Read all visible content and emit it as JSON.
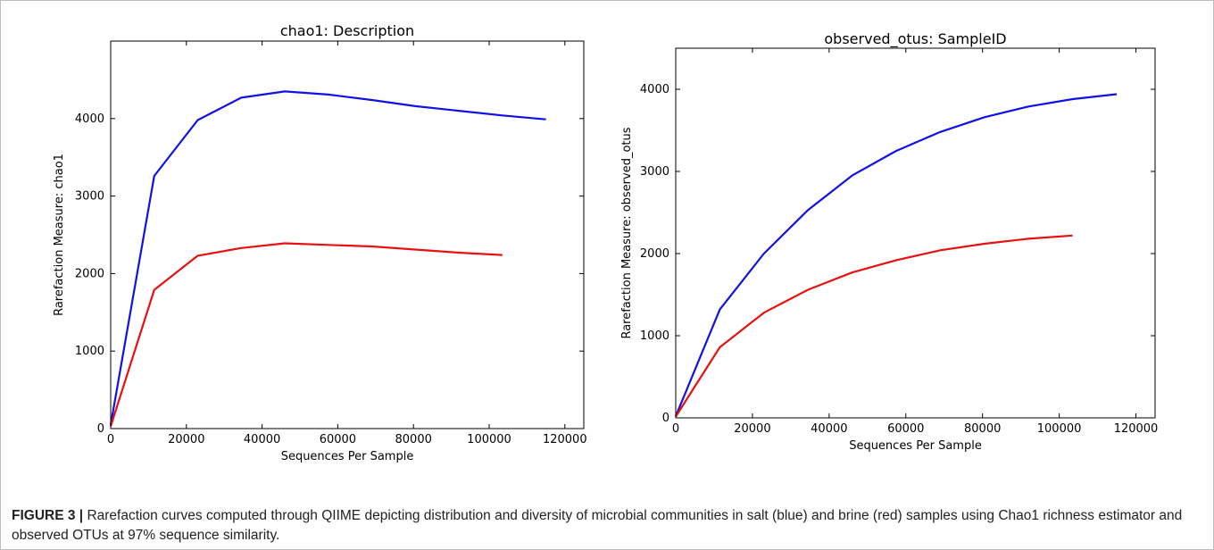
{
  "caption": {
    "label": "FIGURE 3 |",
    "text": " Rarefaction curves computed through QIIME depicting distribution and diversity of microbial communities in salt (blue) and brine (red) samples using Chao1 richness estimator and observed OTUs at 97% sequence similarity."
  },
  "colors": {
    "series_1": "#1010e8",
    "series_2": "#e81010",
    "axes": "#000000"
  },
  "chart_data": [
    {
      "type": "line",
      "title": "chao1: Description",
      "xlabel": "Sequences Per Sample",
      "ylabel": "Rarefaction Measure: chao1",
      "xlim": [
        0,
        125000
      ],
      "ylim": [
        0,
        5000
      ],
      "xticks": [
        0,
        20000,
        40000,
        60000,
        80000,
        100000,
        120000
      ],
      "xtick_labels": [
        "0",
        "20000",
        "40000",
        "60000",
        "80000",
        "100000",
        "120000"
      ],
      "yticks": [
        0,
        1000,
        2000,
        3000,
        4000
      ],
      "ytick_labels": [
        "0",
        "1000",
        "2000",
        "3000",
        "4000"
      ],
      "grid": false,
      "series": [
        {
          "color": "blue",
          "x": [
            0,
            11500,
            23000,
            34500,
            46000,
            57500,
            69000,
            80500,
            92000,
            103500,
            115000
          ],
          "y": [
            50,
            3260,
            3980,
            4270,
            4350,
            4310,
            4240,
            4160,
            4100,
            4040,
            3990
          ]
        },
        {
          "color": "red",
          "x": [
            0,
            11500,
            23000,
            34500,
            46000,
            57500,
            69000,
            80500,
            92000,
            103500
          ],
          "y": [
            30,
            1790,
            2230,
            2330,
            2390,
            2370,
            2350,
            2310,
            2270,
            2240
          ]
        }
      ]
    },
    {
      "type": "line",
      "title": "observed_otus: SampleID",
      "xlabel": "Sequences Per Sample",
      "ylabel": "Rarefaction Measure: observed_otus",
      "xlim": [
        0,
        125000
      ],
      "ylim": [
        0,
        4500
      ],
      "xticks": [
        0,
        20000,
        40000,
        60000,
        80000,
        100000,
        120000
      ],
      "xtick_labels": [
        "0",
        "20000",
        "40000",
        "60000",
        "80000",
        "100000",
        "120000"
      ],
      "yticks": [
        0,
        1000,
        2000,
        3000,
        4000
      ],
      "ytick_labels": [
        "0",
        "1000",
        "2000",
        "3000",
        "4000"
      ],
      "grid": false,
      "series": [
        {
          "color": "blue",
          "x": [
            0,
            11500,
            23000,
            34500,
            46000,
            57500,
            69000,
            80500,
            92000,
            103500,
            115000
          ],
          "y": [
            20,
            1320,
            2000,
            2530,
            2950,
            3250,
            3480,
            3660,
            3790,
            3880,
            3940
          ]
        },
        {
          "color": "red",
          "x": [
            0,
            11500,
            23000,
            34500,
            46000,
            57500,
            69000,
            80500,
            92000,
            103500
          ],
          "y": [
            15,
            860,
            1280,
            1560,
            1770,
            1920,
            2040,
            2120,
            2180,
            2220
          ]
        }
      ]
    }
  ]
}
